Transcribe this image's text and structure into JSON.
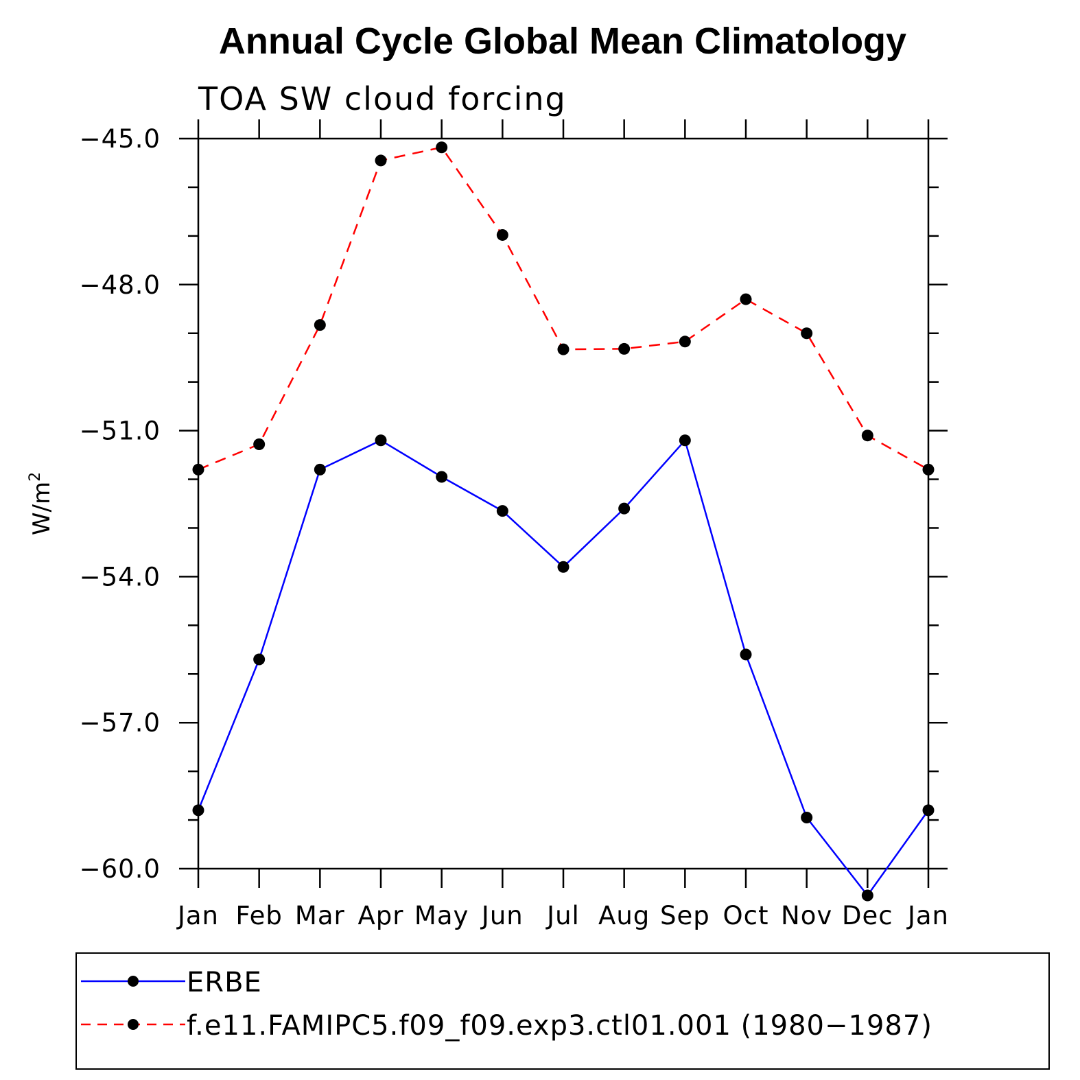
{
  "chart_data": {
    "type": "line",
    "title": "Annual Cycle Global Mean Climatology",
    "subtitle": "TOA SW cloud forcing",
    "ylabel": "W/m",
    "ylabel_superscript": "2",
    "ylim": [
      -60.0,
      -45.0
    ],
    "yticks": [
      -60.0,
      -57.0,
      -54.0,
      -51.0,
      -48.0,
      -45.0
    ],
    "ytick_labels": [
      "−60.0",
      "−57.0",
      "−54.0",
      "−51.0",
      "−48.0",
      "−45.0"
    ],
    "yminor_step": 1.0,
    "categories": [
      "Jan",
      "Feb",
      "Mar",
      "Apr",
      "May",
      "Jun",
      "Jul",
      "Aug",
      "Sep",
      "Oct",
      "Nov",
      "Dec",
      "Jan"
    ],
    "series": [
      {
        "name": "ERBE",
        "color": "#0000ff",
        "dash": "solid",
        "marker": "filled-circle",
        "values": [
          -58.8,
          -55.7,
          -51.8,
          -51.2,
          -51.95,
          -52.65,
          -53.8,
          -52.6,
          -51.2,
          -55.6,
          -58.95,
          -60.55,
          -58.8
        ]
      },
      {
        "name": "f.e11.FAMIPC5.f09_f09.exp3.ctl01.001 (1980−1987)",
        "color": "#ff0000",
        "dash": "dashed",
        "marker": "filled-circle",
        "values": [
          -51.8,
          -51.28,
          -48.83,
          -45.45,
          -45.18,
          -46.98,
          -49.33,
          -49.32,
          -49.17,
          -48.3,
          -49.0,
          -51.1,
          -51.8
        ]
      }
    ]
  }
}
